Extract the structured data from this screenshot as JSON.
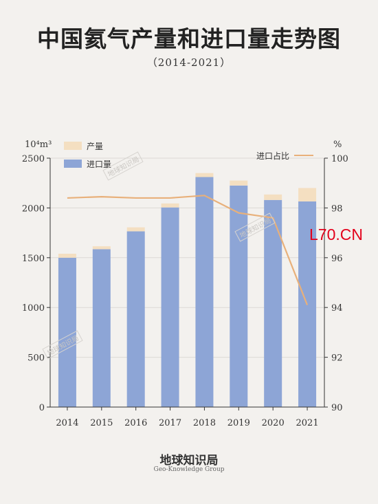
{
  "header": {
    "title": "中国氦气产量和进口量走势图",
    "subtitle": "（2014-2021）"
  },
  "chart_data": {
    "type": "bar",
    "stacked": true,
    "categories": [
      "2014",
      "2015",
      "2016",
      "2017",
      "2018",
      "2019",
      "2020",
      "2021"
    ],
    "series": [
      {
        "name": "进口量",
        "values": [
          1500,
          1585,
          1765,
          2005,
          2310,
          2225,
          2080,
          2065
        ],
        "color": "#8da5d6"
      },
      {
        "name": "产量",
        "values": [
          40,
          30,
          40,
          40,
          40,
          50,
          55,
          135
        ],
        "color": "#f4dfc1"
      }
    ],
    "line_series": {
      "name": "进口占比",
      "values": [
        98.4,
        98.45,
        98.4,
        98.4,
        98.5,
        97.8,
        97.6,
        94.1
      ],
      "color": "#e8b07a"
    },
    "y_left": {
      "unit": "10⁴m³",
      "ticks": [
        "2500",
        "2000",
        "1500",
        "1000",
        "500",
        "0"
      ],
      "ylim": [
        0,
        2500
      ]
    },
    "y_right": {
      "unit": "%",
      "ticks": [
        "100",
        "98",
        "96",
        "94",
        "92",
        "90"
      ],
      "ylim": [
        90,
        100
      ]
    },
    "legend": {
      "items": [
        "产量",
        "进口量"
      ],
      "line_label": "进口占比"
    }
  },
  "watermark": "地球知识局",
  "brand": "L70.CN",
  "footer": {
    "cn": "地球知识局",
    "en": "Geo-Knowledge Group"
  }
}
